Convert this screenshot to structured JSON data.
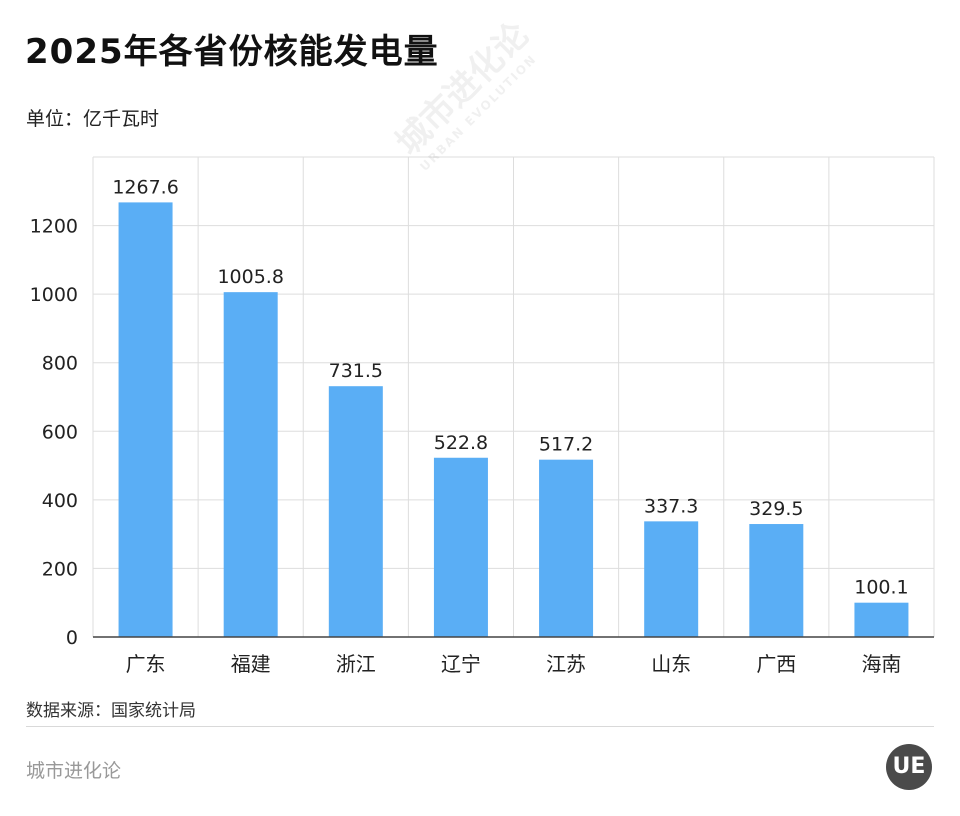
{
  "header": {
    "title": "2025年各省份核能发电量",
    "unit_label": "单位：亿千瓦时"
  },
  "footer": {
    "source": "数据来源：国家统计局",
    "brand": "城市进化论",
    "logo_text": "UE"
  },
  "watermark": {
    "text": "城市进化论",
    "subtext": "URBAN EVOLUTION"
  },
  "colors": {
    "bar": "#5aaef5",
    "grid": "#dddddd",
    "axis": "#444444"
  },
  "chart_data": {
    "type": "bar",
    "categories": [
      "广东",
      "福建",
      "浙江",
      "辽宁",
      "江苏",
      "山东",
      "广西",
      "海南"
    ],
    "values": [
      1267.6,
      1005.8,
      731.5,
      522.8,
      517.2,
      337.3,
      329.5,
      100.1
    ],
    "value_labels": [
      "1267.6",
      "1005.8",
      "731.5",
      "522.8",
      "517.2",
      "337.3",
      "329.5",
      "100.1"
    ],
    "ylim": [
      0,
      1400
    ],
    "yticks": [
      0,
      200,
      400,
      600,
      800,
      1000,
      1200
    ],
    "grid": true,
    "legend": "none"
  }
}
